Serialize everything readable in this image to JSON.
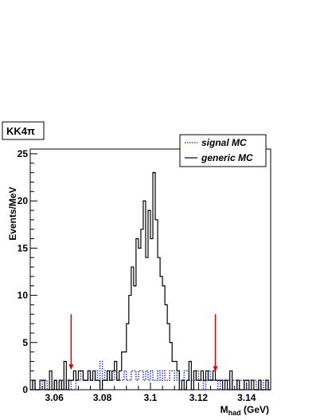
{
  "chart_data": {
    "type": "histogram",
    "title": "KK4π",
    "xlabel_main": "M",
    "xlabel_sub": "had",
    "xlabel_unit": " (GeV)",
    "ylabel": "Events/MeV",
    "xlim": [
      3.05,
      3.15
    ],
    "ylim": [
      0,
      25.5
    ],
    "x_ticks": [
      "3.06",
      "3.08",
      "3.1",
      "3.12",
      "3.14"
    ],
    "x_tick_values": [
      3.06,
      3.08,
      3.1,
      3.12,
      3.14
    ],
    "y_ticks": [
      "0",
      "5",
      "10",
      "15",
      "20",
      "25"
    ],
    "y_tick_values": [
      0,
      5,
      10,
      15,
      20,
      25
    ],
    "bin_start": 3.05,
    "bin_width": 0.001,
    "grid": false,
    "legend_position": "top-right",
    "series": [
      {
        "name": "signal MC",
        "style": "dotted",
        "color": "#3333cc",
        "values": [
          0,
          1,
          0,
          0,
          0,
          1,
          1,
          0,
          0,
          0,
          1,
          0,
          0,
          1,
          0,
          1,
          1,
          0,
          0,
          1,
          1,
          2,
          1,
          1,
          2,
          1,
          1,
          2,
          1,
          3,
          1,
          2,
          1,
          2,
          1,
          2,
          1,
          1,
          1,
          2,
          1,
          1,
          2,
          2,
          1,
          2,
          2,
          1,
          2,
          1,
          2,
          1,
          1,
          2,
          1,
          2,
          1,
          1,
          2,
          2,
          1,
          2,
          1,
          1,
          2,
          2,
          1,
          1,
          1,
          2,
          1,
          1,
          0,
          1,
          2,
          1,
          1,
          1,
          0,
          1,
          1,
          1,
          1,
          0,
          1,
          1,
          0,
          1,
          1,
          0,
          1,
          1,
          1,
          1,
          0,
          1,
          0,
          1,
          1,
          0
        ]
      },
      {
        "name": "generic MC",
        "style": "solid",
        "color": "#000000",
        "values": [
          0,
          1,
          0,
          0,
          1,
          1,
          0,
          0,
          2,
          0,
          1,
          0,
          1,
          0,
          3,
          0,
          1,
          1,
          2,
          1,
          2,
          2,
          1,
          1,
          2,
          1,
          2,
          1,
          1,
          0,
          1,
          1,
          2,
          1,
          2,
          3,
          1,
          2,
          4,
          4,
          7,
          10,
          13,
          11,
          16,
          15,
          17,
          20,
          14,
          19,
          16,
          23,
          18,
          14,
          12,
          11,
          9,
          7,
          5,
          3,
          3,
          2,
          0,
          1,
          0,
          1,
          3,
          0,
          2,
          1,
          1,
          2,
          1,
          2,
          1,
          1,
          2,
          1,
          1,
          1,
          0,
          1,
          0,
          2,
          0,
          0,
          1,
          0,
          0,
          1,
          1,
          0,
          1,
          0,
          0,
          1,
          0,
          0,
          1,
          0
        ]
      }
    ],
    "markers": [
      {
        "x": 3.067,
        "from_y": 8.0,
        "to_y": 2.1,
        "color": "#dd0000"
      },
      {
        "x": 3.127,
        "from_y": 8.0,
        "to_y": 1.9,
        "color": "#dd0000"
      }
    ]
  }
}
